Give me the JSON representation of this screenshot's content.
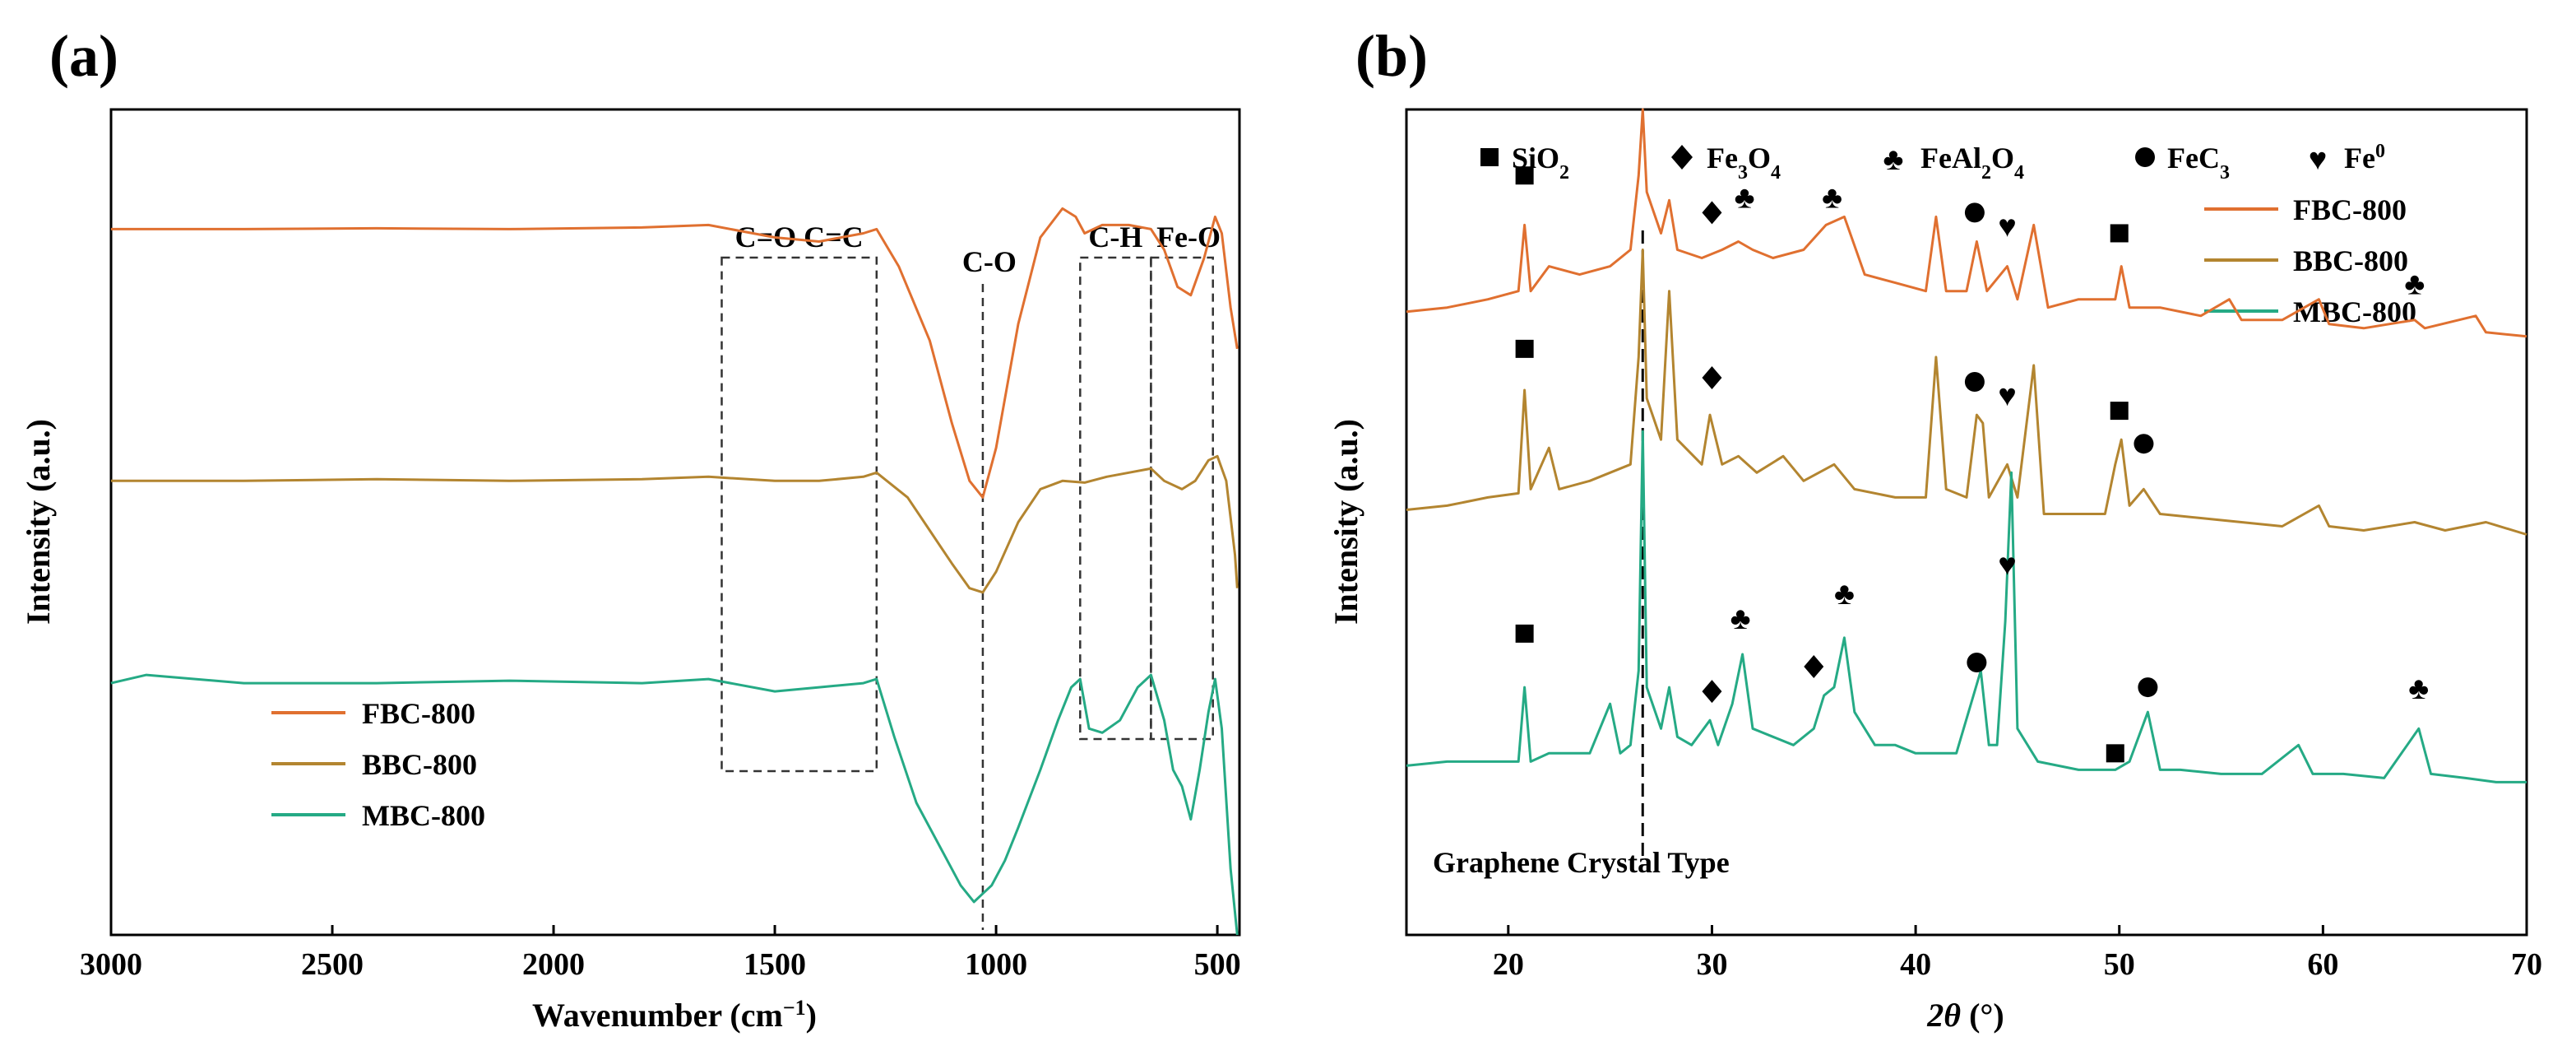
{
  "figure": {
    "panel_a_label": "(a)",
    "panel_b_label": "(b)"
  },
  "colors": {
    "FBC-800": "#e07030",
    "BBC-800": "#b38530",
    "MBC-800": "#25aa85",
    "axis": "#000000"
  },
  "icons": {
    "SiO2": "black-square-icon",
    "Fe3O4": "black-diamond-icon",
    "FeAl2O4": "black-club-icon",
    "FeC3": "black-circle-icon",
    "Fe0": "black-heart-icon"
  },
  "chart_data": [
    {
      "panel": "(a)",
      "type": "line",
      "title": "",
      "xlabel_main": "Wavenumber (cm",
      "xlabel_sup": "−1",
      "xlabel_end": ")",
      "ylabel": "Intensity (a.u.)",
      "xlim": [
        3000,
        450
      ],
      "ylim": [
        0,
        10
      ],
      "grid": false,
      "xticks": [
        3000,
        2500,
        2000,
        1500,
        1000,
        500
      ],
      "xtick_labels": [
        "3000",
        "2500",
        "2000",
        "1500",
        "1000",
        "500"
      ],
      "legend": [
        "FBC-800",
        "BBC-800",
        "MBC-800"
      ],
      "legend_position": "bottom-left",
      "band_labels": [
        {
          "text": "C=O C=C",
          "x_range": [
            1620,
            1270
          ]
        },
        {
          "text": "C-O",
          "x": 1030
        },
        {
          "text": "C-H",
          "x_range": [
            810,
            650
          ]
        },
        {
          "text": "Fe-O",
          "x_range": [
            650,
            510
          ]
        }
      ],
      "series": [
        {
          "name": "FBC-800",
          "x": [
            3000,
            2700,
            2400,
            2100,
            1800,
            1650,
            1500,
            1400,
            1300,
            1270,
            1220,
            1150,
            1100,
            1060,
            1030,
            1000,
            950,
            900,
            850,
            820,
            800,
            760,
            700,
            650,
            620,
            590,
            560,
            530,
            505,
            490,
            470,
            455
          ],
          "y": [
            8.55,
            8.55,
            8.56,
            8.55,
            8.57,
            8.6,
            8.45,
            8.4,
            8.5,
            8.55,
            8.1,
            7.2,
            6.2,
            5.5,
            5.3,
            5.9,
            7.4,
            8.45,
            8.8,
            8.7,
            8.5,
            8.6,
            8.6,
            8.55,
            8.3,
            7.85,
            7.75,
            8.2,
            8.7,
            8.5,
            7.6,
            7.1
          ]
        },
        {
          "name": "BBC-800",
          "x": [
            3000,
            2700,
            2400,
            2100,
            1800,
            1650,
            1500,
            1400,
            1300,
            1270,
            1200,
            1150,
            1100,
            1060,
            1030,
            1000,
            950,
            900,
            850,
            800,
            750,
            700,
            650,
            620,
            580,
            550,
            520,
            500,
            480,
            460,
            455
          ],
          "y": [
            5.5,
            5.5,
            5.52,
            5.5,
            5.52,
            5.55,
            5.5,
            5.5,
            5.55,
            5.6,
            5.3,
            4.9,
            4.5,
            4.2,
            4.15,
            4.4,
            5.0,
            5.4,
            5.5,
            5.48,
            5.55,
            5.6,
            5.65,
            5.5,
            5.4,
            5.5,
            5.75,
            5.8,
            5.5,
            4.6,
            4.2
          ]
        },
        {
          "name": "MBC-800",
          "x": [
            3000,
            2920,
            2700,
            2400,
            2100,
            1800,
            1650,
            1500,
            1400,
            1300,
            1270,
            1230,
            1180,
            1120,
            1080,
            1050,
            1030,
            1010,
            980,
            950,
            900,
            860,
            830,
            810,
            790,
            760,
            720,
            680,
            650,
            620,
            600,
            580,
            560,
            540,
            520,
            505,
            490,
            470,
            455
          ],
          "y": [
            3.05,
            3.15,
            3.05,
            3.05,
            3.08,
            3.05,
            3.1,
            2.95,
            3.0,
            3.05,
            3.1,
            2.4,
            1.6,
            1.0,
            0.6,
            0.4,
            0.5,
            0.6,
            0.9,
            1.3,
            2.0,
            2.6,
            3.0,
            3.1,
            2.5,
            2.45,
            2.6,
            3.0,
            3.15,
            2.6,
            2.0,
            1.8,
            1.4,
            2.0,
            2.7,
            3.1,
            2.5,
            0.8,
            0.0
          ]
        }
      ]
    },
    {
      "panel": "(b)",
      "type": "line",
      "title": "",
      "xlabel_sym": "2θ",
      "xlabel_unit": " (°)",
      "ylabel": "Intensity (a.u.)",
      "xlim": [
        15,
        70
      ],
      "ylim": [
        0,
        10
      ],
      "grid": false,
      "xticks": [
        20,
        30,
        40,
        50,
        60,
        70
      ],
      "xtick_labels": [
        "20",
        "30",
        "40",
        "50",
        "60",
        "70"
      ],
      "legend": [
        "FBC-800",
        "BBC-800",
        "MBC-800"
      ],
      "legend_position": "top-right",
      "graphene_line_x": 26.6,
      "graphene_label": "Graphene Crystal Type",
      "phase_legend": [
        {
          "icon": "black-square-icon",
          "base": "SiO",
          "sub": "2",
          "sup": ""
        },
        {
          "icon": "black-diamond-icon",
          "base": "Fe",
          "sub": "3",
          "mid": "O",
          "sub2": "4"
        },
        {
          "icon": "black-club-icon",
          "base": "FeAl",
          "sub": "2",
          "mid": "O",
          "sub2": "4"
        },
        {
          "icon": "black-circle-icon",
          "base": "FeC",
          "sub": "3"
        },
        {
          "icon": "black-heart-icon",
          "base": "Fe",
          "sup": "0"
        }
      ],
      "series": [
        {
          "name": "FBC-800",
          "x": [
            15,
            17,
            19,
            20.5,
            20.8,
            21.1,
            22,
            23.5,
            25,
            26,
            26.4,
            26.6,
            26.8,
            27.5,
            27.9,
            28.3,
            29.5,
            30.5,
            31.3,
            32,
            33,
            34.5,
            35.6,
            36.5,
            37.5,
            39,
            40.5,
            41,
            41.5,
            42.5,
            43,
            43.5,
            44.5,
            45,
            45.8,
            46.5,
            48,
            49.8,
            50.1,
            50.5,
            52,
            54,
            55.4,
            56,
            58,
            59.8,
            60.3,
            62,
            64.5,
            65,
            67.5,
            68,
            70
          ],
          "y": [
            7.55,
            7.6,
            7.7,
            7.8,
            8.6,
            7.8,
            8.1,
            8.0,
            8.1,
            8.3,
            9.2,
            10.0,
            9.0,
            8.5,
            8.9,
            8.3,
            8.2,
            8.3,
            8.4,
            8.3,
            8.2,
            8.3,
            8.6,
            8.7,
            8.0,
            7.9,
            7.8,
            8.7,
            7.8,
            7.8,
            8.4,
            7.8,
            8.1,
            7.7,
            8.6,
            7.6,
            7.7,
            7.7,
            8.1,
            7.6,
            7.6,
            7.5,
            7.7,
            7.45,
            7.45,
            7.7,
            7.4,
            7.35,
            7.45,
            7.35,
            7.5,
            7.3,
            7.25
          ]
        },
        {
          "name": "BBC-800",
          "x": [
            15,
            17,
            19,
            20.5,
            20.8,
            21.1,
            22,
            22.5,
            24,
            26,
            26.4,
            26.6,
            26.8,
            27.5,
            27.9,
            28.3,
            29.5,
            29.9,
            30.5,
            31.3,
            32.2,
            33.5,
            34.5,
            36,
            37,
            39,
            40.5,
            41,
            41.5,
            42.5,
            43,
            43.3,
            43.6,
            44.5,
            45,
            45.8,
            46.3,
            48,
            49.3,
            49.8,
            50.1,
            50.5,
            51.2,
            52,
            54,
            56,
            58,
            59.8,
            60.3,
            62,
            64.5,
            66,
            68,
            70
          ],
          "y": [
            5.15,
            5.2,
            5.3,
            5.35,
            6.6,
            5.4,
            5.9,
            5.4,
            5.5,
            5.7,
            7.0,
            8.3,
            6.5,
            6.0,
            7.8,
            6.0,
            5.7,
            6.3,
            5.7,
            5.8,
            5.6,
            5.8,
            5.5,
            5.7,
            5.4,
            5.3,
            5.3,
            7.0,
            5.4,
            5.3,
            6.3,
            6.2,
            5.3,
            5.7,
            5.3,
            6.9,
            5.1,
            5.1,
            5.1,
            5.7,
            6.0,
            5.2,
            5.4,
            5.1,
            5.05,
            5.0,
            4.95,
            5.2,
            4.95,
            4.9,
            5.0,
            4.9,
            5.0,
            4.85
          ]
        },
        {
          "name": "MBC-800",
          "x": [
            15,
            17,
            19,
            20.5,
            20.8,
            21.1,
            22,
            24,
            25,
            25.5,
            26,
            26.4,
            26.6,
            26.8,
            27.5,
            27.9,
            28.3,
            29,
            29.9,
            30.3,
            31,
            31.5,
            32,
            33,
            34,
            35,
            35.5,
            36,
            36.5,
            37,
            38,
            39,
            40,
            41,
            42,
            43.2,
            43.6,
            44,
            44.4,
            44.7,
            45,
            46,
            48,
            49.8,
            50.5,
            51.4,
            52,
            53,
            55,
            57,
            58.8,
            59.5,
            61,
            63,
            64.7,
            65.3,
            67,
            68.5,
            70
          ],
          "y": [
            2.05,
            2.1,
            2.1,
            2.1,
            3.0,
            2.1,
            2.2,
            2.2,
            2.8,
            2.2,
            2.3,
            3.2,
            6.1,
            3.0,
            2.5,
            3.0,
            2.4,
            2.3,
            2.6,
            2.3,
            2.8,
            3.4,
            2.5,
            2.4,
            2.3,
            2.5,
            2.9,
            3.0,
            3.6,
            2.7,
            2.3,
            2.3,
            2.2,
            2.2,
            2.2,
            3.2,
            2.3,
            2.3,
            3.8,
            5.6,
            2.5,
            2.1,
            2.0,
            2.0,
            2.1,
            2.7,
            2.0,
            2.0,
            1.95,
            1.95,
            2.3,
            1.95,
            1.95,
            1.9,
            2.5,
            1.95,
            1.9,
            1.85,
            1.85
          ]
        }
      ],
      "markers": [
        {
          "series": "FBC-800",
          "icon": "black-square-icon",
          "x": 20.8,
          "y": 9.2
        },
        {
          "series": "FBC-800",
          "icon": "black-diamond-icon",
          "x": 30.0,
          "y": 8.75
        },
        {
          "series": "FBC-800",
          "icon": "black-club-icon",
          "x": 31.6,
          "y": 8.95
        },
        {
          "series": "FBC-800",
          "icon": "black-club-icon",
          "x": 35.9,
          "y": 8.95
        },
        {
          "series": "FBC-800",
          "icon": "black-circle-icon",
          "x": 42.9,
          "y": 8.75
        },
        {
          "series": "FBC-800",
          "icon": "black-heart-icon",
          "x": 44.5,
          "y": 8.6
        },
        {
          "series": "FBC-800",
          "icon": "black-square-icon",
          "x": 50.0,
          "y": 8.5
        },
        {
          "series": "FBC-800",
          "icon": "black-club-icon",
          "x": 64.5,
          "y": 7.9
        },
        {
          "series": "BBC-800",
          "icon": "black-square-icon",
          "x": 20.8,
          "y": 7.1
        },
        {
          "series": "BBC-800",
          "icon": "black-diamond-icon",
          "x": 30.0,
          "y": 6.75
        },
        {
          "series": "BBC-800",
          "icon": "black-circle-icon",
          "x": 42.9,
          "y": 6.7
        },
        {
          "series": "BBC-800",
          "icon": "black-heart-icon",
          "x": 44.5,
          "y": 6.55
        },
        {
          "series": "BBC-800",
          "icon": "black-square-icon",
          "x": 50.0,
          "y": 6.35
        },
        {
          "series": "BBC-800",
          "icon": "black-circle-icon",
          "x": 51.2,
          "y": 5.95
        },
        {
          "series": "MBC-800",
          "icon": "black-square-icon",
          "x": 20.8,
          "y": 3.65
        },
        {
          "series": "MBC-800",
          "icon": "black-diamond-icon",
          "x": 30.0,
          "y": 2.95
        },
        {
          "series": "MBC-800",
          "icon": "black-club-icon",
          "x": 31.4,
          "y": 3.85
        },
        {
          "series": "MBC-800",
          "icon": "black-diamond-icon",
          "x": 35.0,
          "y": 3.25
        },
        {
          "series": "MBC-800",
          "icon": "black-club-icon",
          "x": 36.5,
          "y": 4.15
        },
        {
          "series": "MBC-800",
          "icon": "black-circle-icon",
          "x": 43.0,
          "y": 3.3
        },
        {
          "series": "MBC-800",
          "icon": "black-heart-icon",
          "x": 44.5,
          "y": 4.5
        },
        {
          "series": "MBC-800",
          "icon": "black-square-icon",
          "x": 49.8,
          "y": 2.2
        },
        {
          "series": "MBC-800",
          "icon": "black-circle-icon",
          "x": 51.4,
          "y": 3.0
        },
        {
          "series": "MBC-800",
          "icon": "black-club-icon",
          "x": 64.7,
          "y": 3.0
        }
      ]
    }
  ]
}
